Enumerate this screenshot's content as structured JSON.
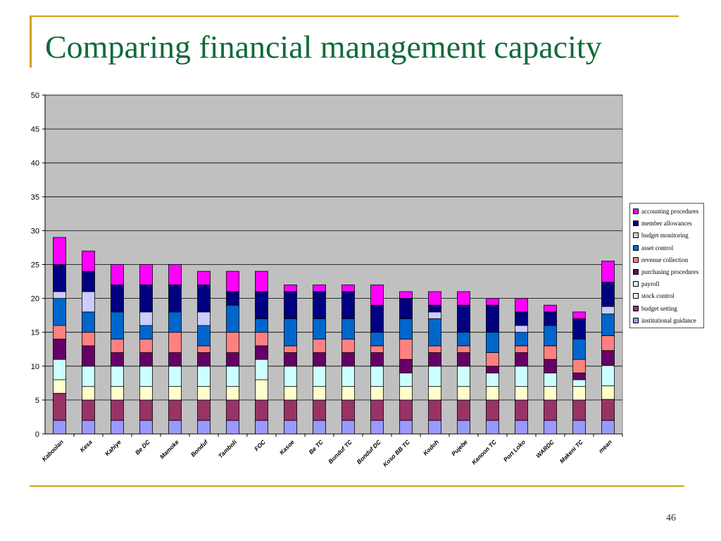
{
  "slide": {
    "title": "Comparing financial management capacity",
    "page_number": "46",
    "accent_color": "#d4a017",
    "title_color": "#0f6b3a"
  },
  "chart_data": {
    "type": "bar",
    "stacked": true,
    "title": "",
    "xlabel": "",
    "ylabel": "",
    "ylim": [
      0,
      50
    ],
    "yticks": [
      0,
      5,
      10,
      15,
      20,
      25,
      30,
      35,
      40,
      45,
      50
    ],
    "grid": true,
    "legend_position": "right",
    "plot_background": "#c0c0c0",
    "categories": [
      "Kaboolan",
      "Kesa",
      "Kahiye",
      "Be DC",
      "Mamoke",
      "Bonduf",
      "Tamboli",
      "FOC",
      "Kasoe",
      "Be TC",
      "Bonduf TC",
      "Bonduf DC",
      "Koso BB TC",
      "Kodoh",
      "Pujebe",
      "Kanoon TC",
      "Port Loko",
      "WARDC",
      "Makeni TC",
      "mean"
    ],
    "series": [
      {
        "name": "institutional guidance",
        "color": "#9999ff",
        "values": [
          2,
          2,
          2,
          2,
          2,
          2,
          2,
          2,
          2,
          2,
          2,
          2,
          2,
          2,
          2,
          2,
          2,
          2,
          2,
          2
        ]
      },
      {
        "name": "budget setting",
        "color": "#993366",
        "values": [
          4,
          3,
          3,
          3,
          3,
          3,
          3,
          3,
          3,
          3,
          3,
          3,
          3,
          3,
          3,
          3,
          3,
          3,
          3,
          3.1
        ]
      },
      {
        "name": "stock control",
        "color": "#ffffcc",
        "values": [
          2,
          2,
          2,
          2,
          2,
          2,
          2,
          3,
          2,
          2,
          2,
          2,
          2,
          2,
          2,
          2,
          2,
          2,
          2,
          2
        ]
      },
      {
        "name": "payroll",
        "color": "#ccffff",
        "values": [
          3,
          3,
          3,
          3,
          3,
          3,
          3,
          3,
          3,
          3,
          3,
          3,
          2,
          3,
          3,
          2,
          3,
          2,
          1,
          3
        ]
      },
      {
        "name": "purchasing procedures",
        "color": "#660066",
        "values": [
          3,
          3,
          2,
          2,
          2,
          2,
          2,
          2,
          2,
          2,
          2,
          2,
          2,
          2,
          2,
          1,
          2,
          2,
          1,
          2.2
        ]
      },
      {
        "name": "revenue collection",
        "color": "#ff8080",
        "values": [
          2,
          2,
          2,
          2,
          3,
          1,
          3,
          2,
          1,
          2,
          2,
          1,
          3,
          1,
          1,
          2,
          1,
          2,
          2,
          2.2
        ]
      },
      {
        "name": "asset control",
        "color": "#0066cc",
        "values": [
          4,
          3,
          4,
          2,
          3,
          3,
          4,
          2,
          4,
          3,
          3,
          2,
          3,
          4,
          2,
          3,
          2,
          3,
          3,
          3.2
        ]
      },
      {
        "name": "budget monitoring",
        "color": "#ccccff",
        "values": [
          1,
          3,
          0,
          2,
          0,
          2,
          0,
          0,
          0,
          0,
          0,
          0,
          0,
          1,
          0,
          0,
          1,
          0,
          0,
          1.1
        ]
      },
      {
        "name": "member allowances",
        "color": "#000080",
        "values": [
          4,
          3,
          4,
          4,
          4,
          4,
          2,
          4,
          4,
          4,
          4,
          4,
          3,
          1,
          4,
          4,
          2,
          2,
          3,
          3.6
        ]
      },
      {
        "name": "accounting procedures",
        "color": "#ff00ff",
        "values": [
          4,
          3,
          3,
          3,
          3,
          2,
          3,
          3,
          1,
          1,
          1,
          3,
          1,
          2,
          2,
          1,
          2,
          1,
          1,
          3.1
        ]
      }
    ]
  }
}
